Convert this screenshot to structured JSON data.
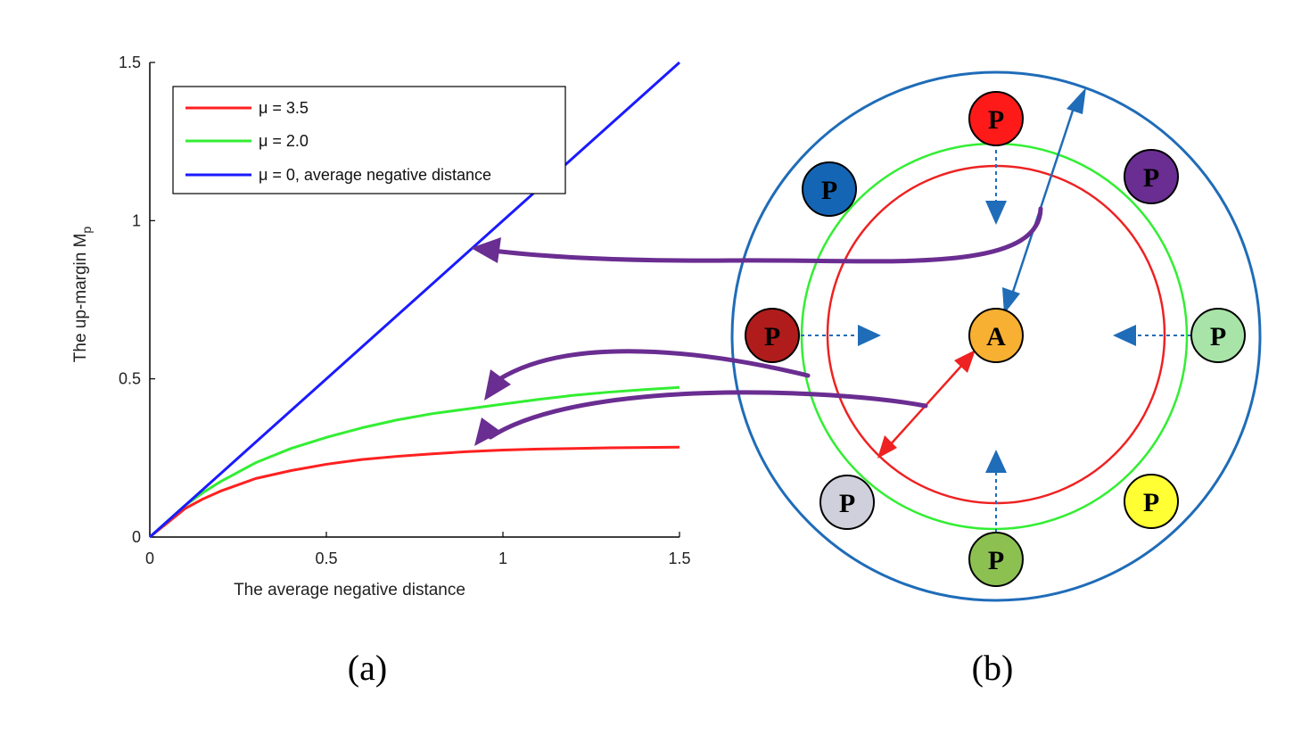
{
  "chart_data": {
    "type": "line",
    "title": "",
    "xlabel": "The average negative distance",
    "ylabel_main": "The up-margin M",
    "ylabel_sub": "p",
    "xlim": [
      0,
      1.5
    ],
    "ylim": [
      0,
      1.5
    ],
    "xticks": [
      0,
      0.5,
      1,
      1.5
    ],
    "yticks": [
      0,
      0.5,
      1,
      1.5
    ],
    "xtick_labels": [
      "0",
      "0.5",
      "1",
      "1.5"
    ],
    "ytick_labels": [
      "0",
      "0.5",
      "1",
      "1.5"
    ],
    "grid": false,
    "legend_position": "top-left",
    "series": [
      {
        "name": "μ = 3.5",
        "color": "#ff2020",
        "x": [
          0,
          0.05,
          0.1,
          0.15,
          0.2,
          0.3,
          0.4,
          0.5,
          0.6,
          0.7,
          0.8,
          0.9,
          1.0,
          1.1,
          1.2,
          1.3,
          1.4,
          1.5
        ],
        "y": [
          0,
          0.045,
          0.09,
          0.12,
          0.145,
          0.185,
          0.21,
          0.23,
          0.245,
          0.255,
          0.263,
          0.27,
          0.275,
          0.278,
          0.28,
          0.282,
          0.283,
          0.284
        ]
      },
      {
        "name": "μ = 2.0",
        "color": "#33ee33",
        "x": [
          0,
          0.05,
          0.1,
          0.15,
          0.2,
          0.3,
          0.4,
          0.5,
          0.6,
          0.7,
          0.8,
          0.9,
          1.0,
          1.1,
          1.2,
          1.3,
          1.4,
          1.5
        ],
        "y": [
          0,
          0.05,
          0.1,
          0.14,
          0.175,
          0.235,
          0.28,
          0.315,
          0.345,
          0.37,
          0.39,
          0.405,
          0.42,
          0.435,
          0.448,
          0.458,
          0.466,
          0.473
        ]
      },
      {
        "name": "μ = 0, average negative distance",
        "color": "#1a1aff",
        "x": [
          0,
          1.5
        ],
        "y": [
          0,
          1.5
        ]
      }
    ]
  },
  "captions": {
    "a": "(a)",
    "b": "(b)"
  },
  "diagram": {
    "anchor_label": "A",
    "positive_label": "P",
    "colors": {
      "outer_circle": "#1f6cb8",
      "green_circle": "#33ee33",
      "red_circle": "#ee2222",
      "annotation_arrow": "#6a2d91",
      "dotted_arrow": "#1f6cb8",
      "anchor_fill": "#f7b032"
    },
    "positive_fills": [
      "#ff1a1a",
      "#6a2d91",
      "#a8e4a8",
      "#ffff33",
      "#8cc152",
      "#d0d0dc",
      "#b01c1c",
      "#1565b5"
    ]
  }
}
